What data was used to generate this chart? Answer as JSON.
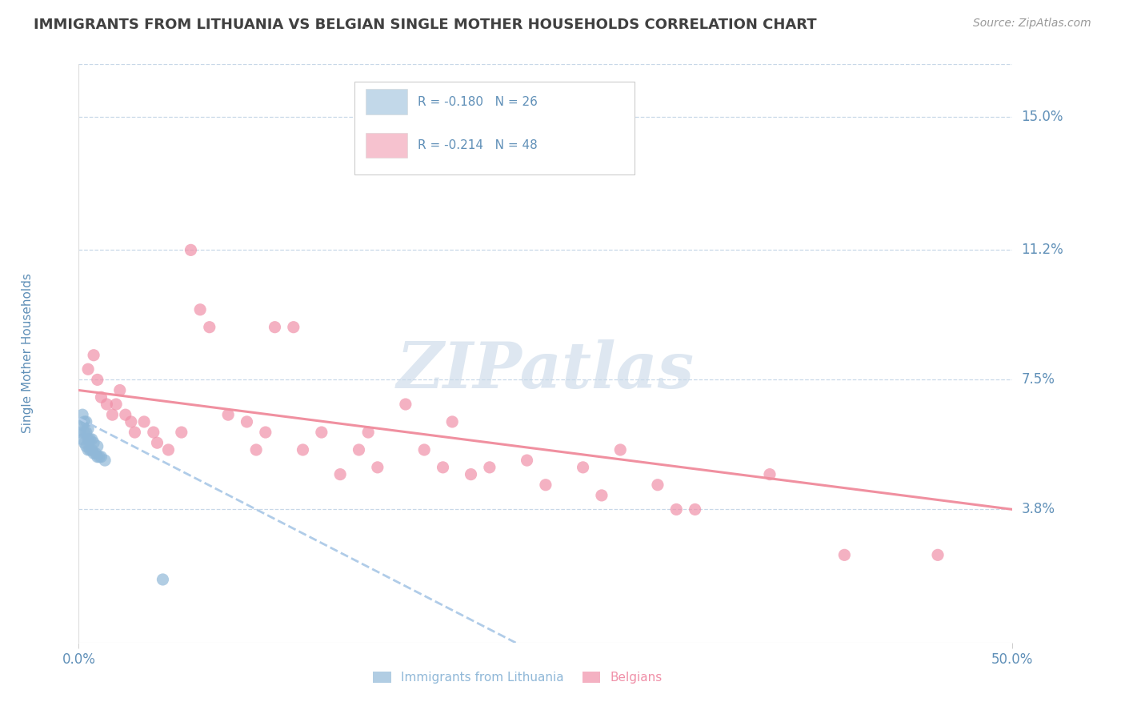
{
  "title": "IMMIGRANTS FROM LITHUANIA VS BELGIAN SINGLE MOTHER HOUSEHOLDS CORRELATION CHART",
  "source": "Source: ZipAtlas.com",
  "ylabel": "Single Mother Households",
  "xlim": [
    0.0,
    0.5
  ],
  "ylim": [
    0.0,
    0.165
  ],
  "yticks": [
    0.038,
    0.075,
    0.112,
    0.15
  ],
  "ytick_labels": [
    "3.8%",
    "7.5%",
    "11.2%",
    "15.0%"
  ],
  "xtick_labels": [
    "0.0%",
    "50.0%"
  ],
  "xtick_pos": [
    0.0,
    0.5
  ],
  "legend_entries": [
    {
      "label": "R = -0.180   N = 26",
      "color": "#a8c8e8"
    },
    {
      "label": "R = -0.214   N = 48",
      "color": "#f4a8b8"
    }
  ],
  "legend_series": [
    "Immigrants from Lithuania",
    "Belgians"
  ],
  "blue_scatter_x": [
    0.001,
    0.002,
    0.002,
    0.002,
    0.003,
    0.003,
    0.003,
    0.004,
    0.004,
    0.004,
    0.005,
    0.005,
    0.005,
    0.006,
    0.006,
    0.007,
    0.007,
    0.008,
    0.008,
    0.009,
    0.01,
    0.01,
    0.011,
    0.012,
    0.014,
    0.045
  ],
  "blue_scatter_y": [
    0.06,
    0.058,
    0.062,
    0.065,
    0.057,
    0.06,
    0.063,
    0.056,
    0.06,
    0.063,
    0.055,
    0.058,
    0.061,
    0.055,
    0.058,
    0.055,
    0.058,
    0.054,
    0.057,
    0.054,
    0.053,
    0.056,
    0.053,
    0.053,
    0.052,
    0.018
  ],
  "pink_scatter_x": [
    0.005,
    0.008,
    0.01,
    0.012,
    0.015,
    0.018,
    0.02,
    0.022,
    0.025,
    0.028,
    0.03,
    0.035,
    0.04,
    0.042,
    0.048,
    0.055,
    0.06,
    0.065,
    0.07,
    0.08,
    0.09,
    0.095,
    0.1,
    0.105,
    0.115,
    0.12,
    0.13,
    0.14,
    0.15,
    0.155,
    0.16,
    0.175,
    0.185,
    0.195,
    0.2,
    0.21,
    0.22,
    0.24,
    0.25,
    0.27,
    0.28,
    0.29,
    0.31,
    0.32,
    0.33,
    0.37,
    0.41,
    0.46
  ],
  "pink_scatter_y": [
    0.078,
    0.082,
    0.075,
    0.07,
    0.068,
    0.065,
    0.068,
    0.072,
    0.065,
    0.063,
    0.06,
    0.063,
    0.06,
    0.057,
    0.055,
    0.06,
    0.112,
    0.095,
    0.09,
    0.065,
    0.063,
    0.055,
    0.06,
    0.09,
    0.09,
    0.055,
    0.06,
    0.048,
    0.055,
    0.06,
    0.05,
    0.068,
    0.055,
    0.05,
    0.063,
    0.048,
    0.05,
    0.052,
    0.045,
    0.05,
    0.042,
    0.055,
    0.045,
    0.038,
    0.038,
    0.048,
    0.025,
    0.025
  ],
  "blue_line_x": [
    0.0,
    0.38
  ],
  "blue_line_y": [
    0.064,
    -0.04
  ],
  "pink_line_x": [
    0.0,
    0.5
  ],
  "pink_line_y": [
    0.072,
    0.038
  ],
  "watermark": "ZIPatlas",
  "bg_color": "#ffffff",
  "scatter_blue": "#90b8d8",
  "scatter_pink": "#f090a8",
  "line_blue": "#b0cce8",
  "line_pink": "#f090a0",
  "grid_color": "#c8d8e8",
  "title_color": "#404040",
  "label_color": "#6090b8",
  "source_color": "#999999"
}
